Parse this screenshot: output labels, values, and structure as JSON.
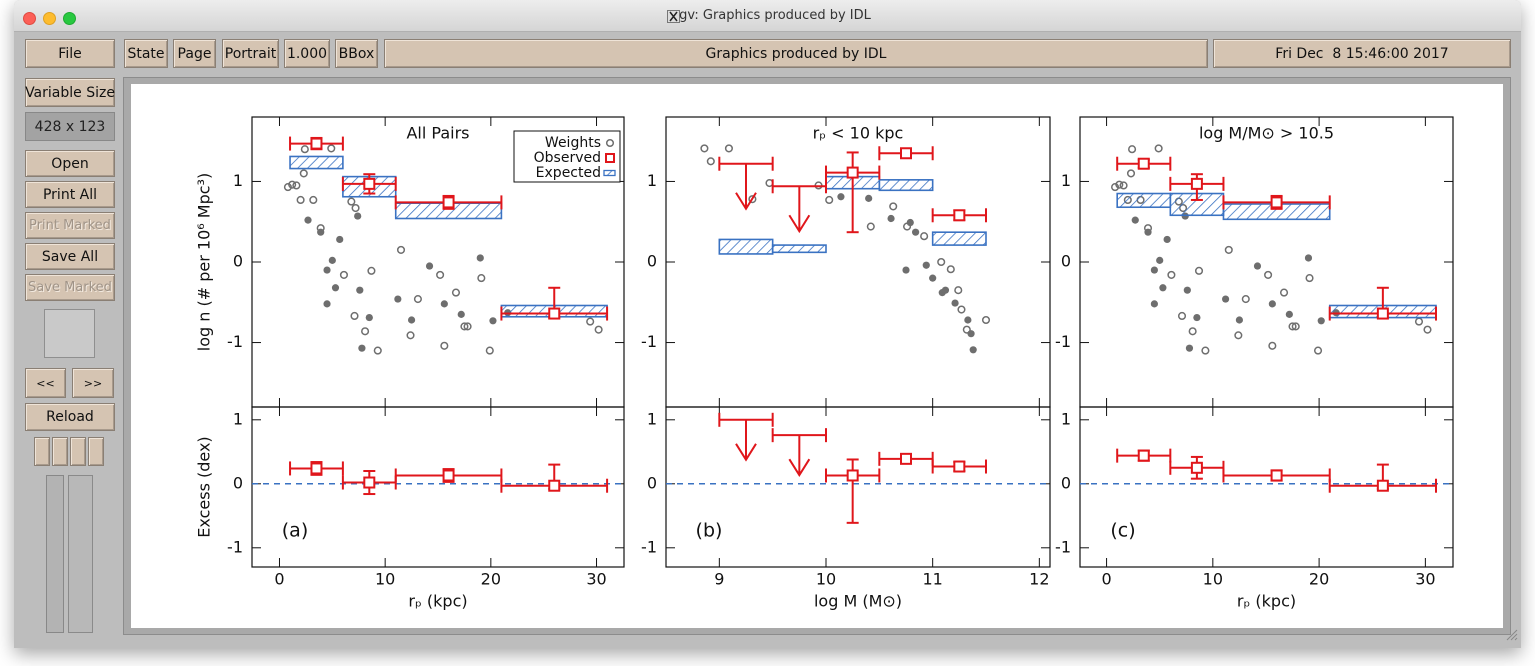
{
  "window": {
    "title": "gv: Graphics produced by IDL"
  },
  "toolbar": {
    "file": "File",
    "state": "State",
    "page": "Page",
    "orientation": "Portrait",
    "scale": "1.000",
    "bbox": "BBox",
    "document": "Graphics produced by IDL",
    "date": "Fri Dec  8 15:46:00 2017"
  },
  "sidebar": {
    "variable_size": "Variable Size",
    "size": "428 x 123",
    "open": "Open",
    "print_all": "Print All",
    "print_marked": "Print Marked",
    "save_all": "Save All",
    "save_marked": "Save Marked",
    "prev": "<<",
    "next": ">>",
    "reload": "Reload"
  },
  "chart_data": [
    {
      "type": "scatter",
      "title": "All Pairs",
      "annotation": "(a)",
      "xlabel": "rₚ (kpc)",
      "xlim": [
        -2.6,
        32.6
      ],
      "xticks": [
        0,
        10,
        20,
        30
      ],
      "legend": "upper right",
      "upper": {
        "ylabel": "log n (# per 10⁶ Mpc³)",
        "ylim": [
          -1.8,
          1.8
        ],
        "yticks": [
          -1,
          0,
          1
        ],
        "weights": {
          "name": "Weights",
          "color": "#6e6e6e",
          "open": {
            "x": [
              0.8,
              1.2,
              1.6,
              2.0,
              2.3,
              2.4,
              3.2,
              3.9,
              4.9,
              6.1,
              6.8,
              7.1,
              7.2,
              8.1,
              8.7,
              9.3,
              11.5,
              12.4,
              13.1,
              15.2,
              15.6,
              16.7,
              17.5,
              17.8,
              19.1,
              19.9,
              29.4,
              30.2
            ],
            "y": [
              0.93,
              0.96,
              0.95,
              0.77,
              1.1,
              1.4,
              0.77,
              0.42,
              1.41,
              -0.16,
              0.75,
              -0.67,
              0.67,
              -0.86,
              -0.11,
              -1.1,
              0.15,
              -0.91,
              -0.46,
              -0.16,
              -1.04,
              -0.38,
              -0.8,
              -0.8,
              -0.2,
              -1.1,
              -0.74,
              -0.84
            ]
          },
          "filled": {
            "x": [
              2.7,
              3.9,
              4.5,
              4.5,
              5.0,
              5.3,
              5.7,
              7.4,
              7.6,
              7.8,
              8.5,
              11.2,
              12.5,
              14.2,
              15.6,
              17.2,
              19.0,
              20.2,
              21.6
            ],
            "y": [
              0.52,
              0.37,
              -0.1,
              -0.52,
              0.02,
              -0.32,
              0.28,
              0.57,
              -0.35,
              -1.07,
              -0.69,
              -0.46,
              -0.72,
              -0.05,
              -0.52,
              -0.65,
              0.05,
              -0.73,
              -0.63
            ]
          }
        },
        "observed": {
          "name": "Observed",
          "color": "#e0161b",
          "x": [
            3.5,
            8.5,
            16,
            26
          ],
          "xlow": [
            1,
            6,
            11,
            21
          ],
          "xhigh": [
            6,
            11,
            21,
            31
          ],
          "y": [
            1.47,
            0.97,
            0.74,
            -0.64
          ],
          "yerr_low": [
            0.07,
            0.12,
            0.08,
            0.05
          ],
          "yerr_high": [
            0.07,
            0.12,
            0.08,
            0.32
          ]
        },
        "expected": {
          "name": "Expected",
          "color": "#3a72c2",
          "xlow": [
            1,
            6,
            11,
            21
          ],
          "xhigh": [
            6,
            11,
            21,
            31
          ],
          "ylow": [
            1.16,
            0.81,
            0.54,
            -0.68
          ],
          "yhigh": [
            1.31,
            1.06,
            0.73,
            -0.54
          ]
        }
      },
      "lower": {
        "ylabel": "Excess (dex)",
        "ylim": [
          -1.3,
          1.2
        ],
        "yticks": [
          -1,
          0,
          1
        ],
        "hline": 0,
        "line_color": "#3a72c2",
        "excess": {
          "color": "#e0161b",
          "x": [
            3.5,
            8.5,
            16,
            26
          ],
          "xlow": [
            1,
            6,
            11,
            21
          ],
          "xhigh": [
            6,
            11,
            21,
            31
          ],
          "y": [
            0.24,
            0.02,
            0.13,
            -0.03
          ],
          "yerr_low": [
            0.1,
            0.18,
            0.1,
            0.05
          ],
          "yerr_high": [
            0.1,
            0.18,
            0.1,
            0.33
          ]
        }
      }
    },
    {
      "type": "scatter",
      "title": "rₚ < 10 kpc",
      "annotation": "(b)",
      "xlabel": "log M (M⊙)",
      "xlim": [
        8.5,
        12.1
      ],
      "xticks": [
        9,
        10,
        11,
        12
      ],
      "upper": {
        "ylim": [
          -1.8,
          1.8
        ],
        "yticks": [
          -1,
          0,
          1
        ],
        "weights": {
          "color": "#6e6e6e",
          "open": {
            "x": [
              8.86,
              8.92,
              9.09,
              9.31,
              9.47,
              9.93,
              10.03,
              10.42,
              10.63,
              10.76,
              10.92,
              11.08,
              11.17,
              11.24,
              11.27,
              11.32,
              11.5
            ],
            "y": [
              1.41,
              1.25,
              1.41,
              0.78,
              0.98,
              0.95,
              0.77,
              0.44,
              0.69,
              0.44,
              0.32,
              0,
              -0.09,
              -0.35,
              -0.59,
              -0.84,
              -0.72
            ]
          },
          "filled": {
            "x": [
              10.14,
              10.4,
              10.61,
              10.79,
              10.84,
              10.75,
              10.94,
              11.0,
              11.09,
              11.12,
              11.21,
              11.33,
              11.36,
              11.38
            ],
            "y": [
              0.81,
              0.79,
              0.54,
              0.49,
              0.37,
              -0.1,
              -0.04,
              -0.2,
              -0.38,
              -0.35,
              -0.51,
              -0.72,
              -0.89,
              -1.09
            ]
          }
        },
        "observed": {
          "color": "#e0161b",
          "x": [
            9.25,
            9.75,
            10.25,
            10.75,
            11.25
          ],
          "xlow": [
            9,
            9.5,
            10,
            10.5,
            11
          ],
          "xhigh": [
            9.5,
            10,
            10.5,
            11,
            11.5
          ],
          "y": [
            1.22,
            0.94,
            1.11,
            1.35,
            0.58
          ],
          "yerr_low": [
            null,
            null,
            0.74,
            0.05,
            0.06
          ],
          "yerr_high": [
            null,
            null,
            0.25,
            0.05,
            0.06
          ],
          "upper_limit": [
            true,
            true,
            false,
            false,
            false
          ]
        },
        "expected": {
          "color": "#3a72c2",
          "xlow": [
            9,
            9.5,
            10,
            10.5,
            11
          ],
          "xhigh": [
            9.5,
            10,
            10.5,
            11,
            11.5
          ],
          "ylow": [
            0.1,
            0.12,
            0.91,
            0.89,
            0.21
          ],
          "yhigh": [
            0.28,
            0.21,
            1.06,
            1.02,
            0.37
          ]
        }
      },
      "lower": {
        "ylim": [
          -1.3,
          1.2
        ],
        "yticks": [
          -1,
          0,
          1
        ],
        "hline": 0,
        "line_color": "#3a72c2",
        "excess": {
          "color": "#e0161b",
          "x": [
            9.25,
            9.75,
            10.25,
            10.75,
            11.25
          ],
          "xlow": [
            9,
            9.5,
            10,
            10.5,
            11
          ],
          "xhigh": [
            9.5,
            10,
            10.5,
            11,
            11.5
          ],
          "y": [
            1.0,
            0.76,
            0.13,
            0.39,
            0.27
          ],
          "yerr_low": [
            null,
            null,
            0.74,
            0.05,
            0.07
          ],
          "yerr_high": [
            null,
            null,
            0.25,
            0.05,
            0.07
          ],
          "upper_limit": [
            true,
            true,
            false,
            false,
            false
          ]
        }
      }
    },
    {
      "type": "scatter",
      "title": "log M/M⊙ > 10.5",
      "annotation": "(c)",
      "xlabel": "rₚ (kpc)",
      "xlim": [
        -2.5,
        32.6
      ],
      "xticks": [
        0,
        10,
        20,
        30
      ],
      "upper": {
        "ylim": [
          -1.8,
          1.8
        ],
        "yticks": [
          -1,
          0,
          1
        ],
        "weights": {
          "color": "#6e6e6e",
          "open": {
            "x": [
              0.8,
              1.2,
              1.6,
              2.0,
              2.3,
              2.4,
              3.2,
              3.9,
              4.9,
              6.1,
              6.8,
              7.1,
              7.2,
              8.1,
              8.7,
              9.3,
              11.5,
              12.4,
              13.1,
              15.2,
              15.6,
              16.7,
              17.5,
              17.8,
              19.1,
              19.9,
              29.4,
              30.2
            ],
            "y": [
              0.93,
              0.96,
              0.95,
              0.77,
              1.1,
              1.4,
              0.77,
              0.42,
              1.41,
              -0.16,
              0.75,
              -0.67,
              0.67,
              -0.86,
              -0.11,
              -1.1,
              0.15,
              -0.91,
              -0.46,
              -0.16,
              -1.04,
              -0.38,
              -0.8,
              -0.8,
              -0.2,
              -1.1,
              -0.74,
              -0.84
            ]
          },
          "filled": {
            "x": [
              2.7,
              3.9,
              4.5,
              4.5,
              5.0,
              5.3,
              5.7,
              7.4,
              7.6,
              7.8,
              8.5,
              11.2,
              12.5,
              14.2,
              15.6,
              17.2,
              19.0,
              20.2,
              21.6
            ],
            "y": [
              0.52,
              0.37,
              -0.1,
              -0.52,
              0.02,
              -0.32,
              0.28,
              0.57,
              -0.35,
              -1.07,
              -0.69,
              -0.46,
              -0.72,
              -0.05,
              -0.52,
              -0.65,
              0.05,
              -0.73,
              -0.63
            ]
          }
        },
        "observed": {
          "color": "#e0161b",
          "x": [
            3.5,
            8.5,
            16,
            26
          ],
          "xlow": [
            1,
            6,
            11,
            21
          ],
          "xhigh": [
            6,
            11,
            21,
            31
          ],
          "y": [
            1.22,
            0.97,
            0.74,
            -0.64
          ],
          "yerr_low": [
            0.05,
            0.2,
            0.08,
            0.05
          ],
          "yerr_high": [
            0.05,
            0.12,
            0.08,
            0.32
          ]
        },
        "expected": {
          "color": "#3a72c2",
          "xlow": [
            1,
            6,
            11,
            21
          ],
          "xhigh": [
            6,
            11,
            21,
            31
          ],
          "ylow": [
            0.68,
            0.58,
            0.53,
            -0.69
          ],
          "yhigh": [
            0.85,
            0.85,
            0.72,
            -0.54
          ]
        }
      },
      "lower": {
        "ylim": [
          -1.3,
          1.2
        ],
        "yticks": [
          -1,
          0,
          1
        ],
        "hline": 0,
        "line_color": "#3a72c2",
        "excess": {
          "color": "#e0161b",
          "x": [
            3.5,
            8.5,
            16,
            26
          ],
          "xlow": [
            1,
            6,
            11,
            21
          ],
          "xhigh": [
            6,
            11,
            21,
            31
          ],
          "y": [
            0.44,
            0.25,
            0.13,
            -0.03
          ],
          "yerr_low": [
            0.08,
            0.17,
            0.08,
            0.05
          ],
          "yerr_high": [
            0.08,
            0.17,
            0.08,
            0.33
          ]
        }
      }
    }
  ]
}
